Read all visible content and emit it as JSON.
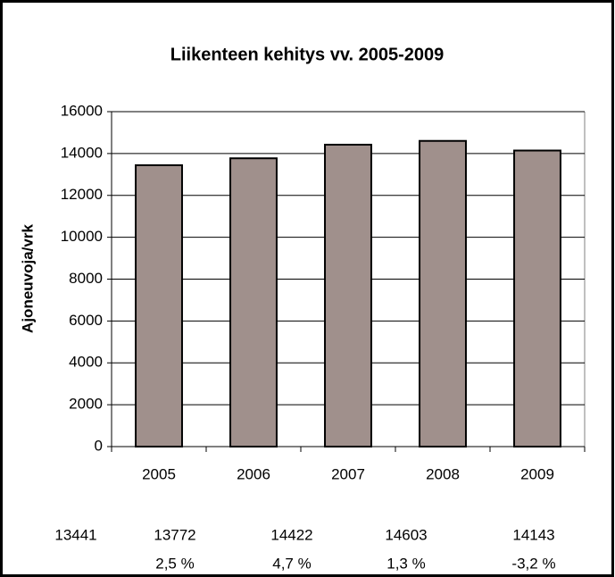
{
  "chart_data": {
    "type": "bar",
    "title": "Liikenteen kehitys vv. 2005-2009",
    "y_label": "Ajoneuvoja/vrk",
    "categories": [
      "2005",
      "2006",
      "2007",
      "2008",
      "2009"
    ],
    "values": [
      13441,
      13772,
      14422,
      14603,
      14143
    ],
    "color": "#a0908c",
    "change_labels": [
      "2,5 %",
      "4,7 %",
      "1,3 %",
      "-3,2 %"
    ],
    "ylim": [
      0,
      16000
    ],
    "yticks": [
      0,
      2000,
      4000,
      6000,
      8000,
      10000,
      12000,
      14000,
      16000
    ],
    "grid": true
  }
}
